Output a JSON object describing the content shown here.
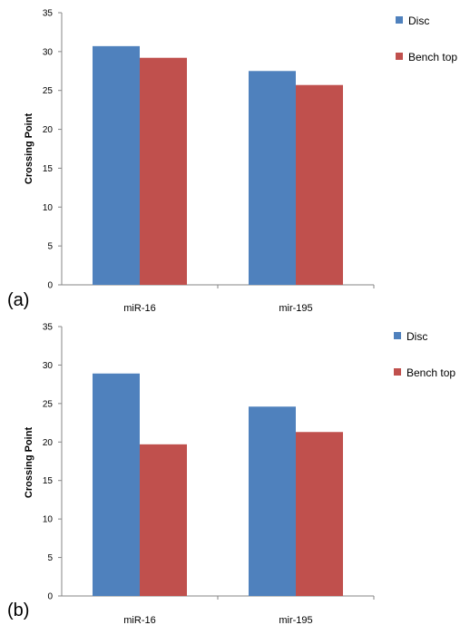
{
  "chart_data": [
    {
      "type": "bar",
      "panel_label": "(a)",
      "categories": [
        "miR-16",
        "mir-195"
      ],
      "series": [
        {
          "name": "Disc",
          "color": "#4f81bd",
          "values": [
            30.7,
            27.5
          ]
        },
        {
          "name": "Bench top",
          "color": "#c0504d",
          "values": [
            29.2,
            25.7
          ]
        }
      ],
      "ylabel": "Crossing Point",
      "ylim": [
        0,
        35
      ],
      "yticks": [
        "0",
        "5",
        "10",
        "15",
        "20",
        "25",
        "30",
        "35"
      ],
      "grid": false,
      "legend": "top-right"
    },
    {
      "type": "bar",
      "panel_label": "(b)",
      "categories": [
        "miR-16",
        "mir-195"
      ],
      "series": [
        {
          "name": "Disc",
          "color": "#4f81bd",
          "values": [
            28.9,
            24.6
          ]
        },
        {
          "name": "Bench top",
          "color": "#c0504d",
          "values": [
            19.7,
            21.3
          ]
        }
      ],
      "ylabel": "Crossing Point",
      "ylim": [
        0,
        35
      ],
      "yticks": [
        "0",
        "5",
        "10",
        "15",
        "20",
        "25",
        "30",
        "35"
      ],
      "grid": false,
      "legend": "top-right"
    }
  ]
}
